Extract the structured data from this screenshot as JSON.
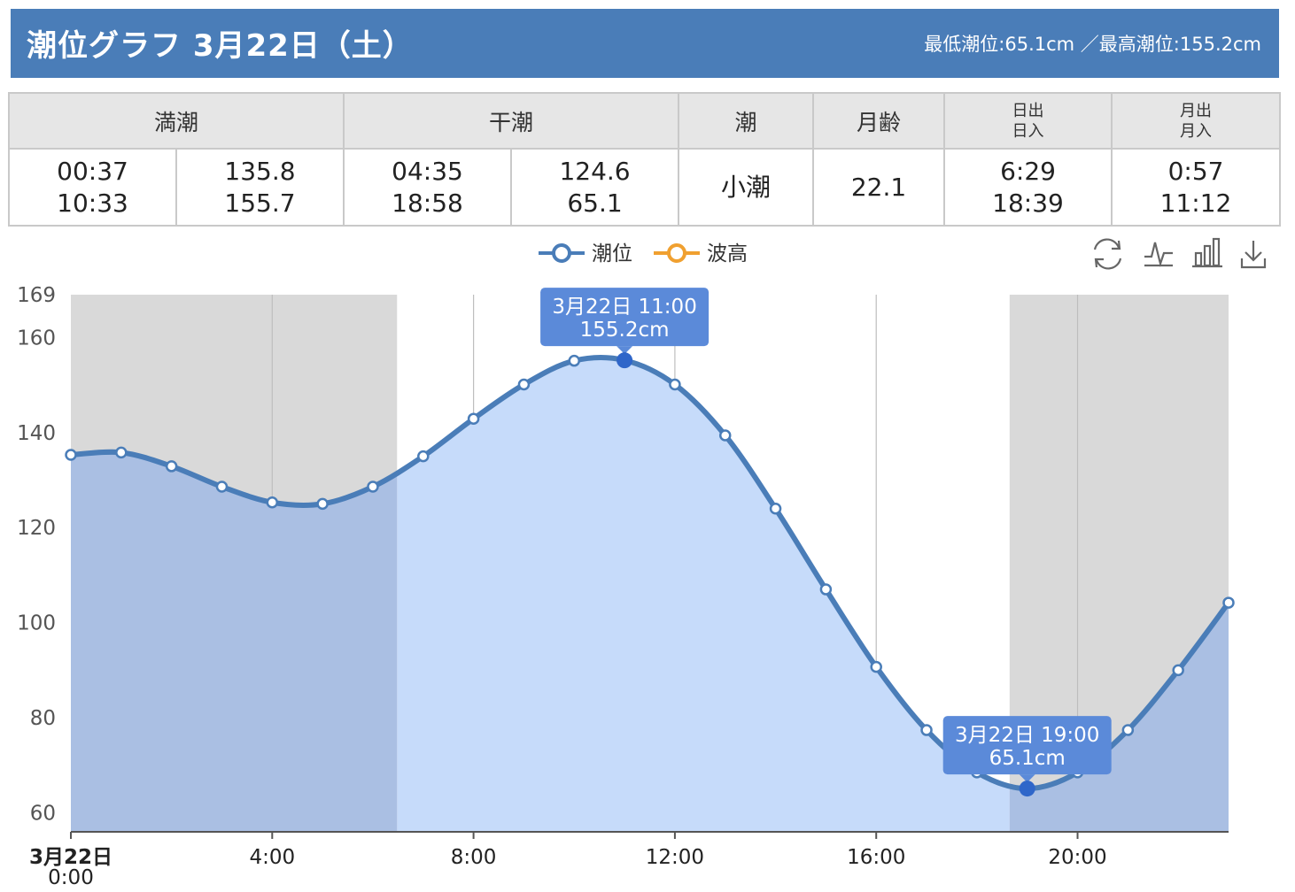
{
  "header": {
    "title": "潮位グラフ 3月22日（土）",
    "range_text": "最低潮位:65.1cm ／最高潮位:155.2cm"
  },
  "table": {
    "headers": {
      "high_tide": "満潮",
      "low_tide": "干潮",
      "tide_type": "潮",
      "moon_age": "月齢",
      "sun_rise": "日出",
      "sun_set": "日入",
      "moon_rise": "月出",
      "moon_set": "月入"
    },
    "values": {
      "high_times": [
        "00:37",
        "10:33"
      ],
      "high_levels": [
        "135.8",
        "155.7"
      ],
      "low_times": [
        "04:35",
        "18:58"
      ],
      "low_levels": [
        "124.6",
        "65.1"
      ],
      "tide_type": "小潮",
      "moon_age": "22.1",
      "sun": [
        "6:29",
        "18:39"
      ],
      "moon": [
        "0:57",
        "11:12"
      ]
    }
  },
  "toolbar": {
    "icons": [
      "refresh-icon",
      "line-chart-icon",
      "bar-chart-icon",
      "download-icon"
    ]
  },
  "chart_data": {
    "type": "line",
    "legend": [
      "潮位",
      "波高"
    ],
    "legend_placement": "top-center",
    "series": [
      {
        "name": "潮位",
        "color": "#4a7db8",
        "x": [
          0,
          1,
          2,
          3,
          4,
          5,
          6,
          7,
          8,
          9,
          10,
          11,
          12,
          13,
          14,
          15,
          16,
          17,
          18,
          19,
          20,
          21,
          22,
          23
        ],
        "values": [
          135.3,
          135.8,
          132.9,
          128.6,
          125.3,
          125.0,
          128.6,
          135.0,
          142.9,
          150.1,
          155.1,
          155.2,
          150.1,
          139.4,
          124.0,
          107.0,
          90.7,
          77.4,
          68.5,
          65.1,
          68.5,
          77.4,
          90.0,
          104.2
        ]
      },
      {
        "name": "波高",
        "color": "#f0a030",
        "values": []
      }
    ],
    "y_ticks": [
      60,
      80,
      100,
      120,
      140,
      160,
      169
    ],
    "ylim": [
      56,
      169
    ],
    "x_ticks": [
      {
        "hour": 0,
        "label": "3月22日",
        "sublabel": "0:00"
      },
      {
        "hour": 4,
        "label": "4:00"
      },
      {
        "hour": 8,
        "label": "8:00"
      },
      {
        "hour": 12,
        "label": "12:00"
      },
      {
        "hour": 16,
        "label": "16:00"
      },
      {
        "hour": 20,
        "label": "20:00"
      }
    ],
    "xlim": [
      0,
      23
    ],
    "night_bands": [
      [
        0,
        6.48
      ],
      [
        18.65,
        23
      ]
    ],
    "annotations": [
      {
        "hour": 11,
        "value": 155.2,
        "line1": "3月22日 11:00",
        "line2": "155.2cm"
      },
      {
        "hour": 19,
        "value": 65.1,
        "line1": "3月22日 19:00",
        "line2": "65.1cm"
      }
    ],
    "colors": {
      "night": "#d9d9d9",
      "day_fill": "#c6dbfa",
      "night_fill": "#aabfe3",
      "tooltip": "#5b8ad9"
    }
  }
}
